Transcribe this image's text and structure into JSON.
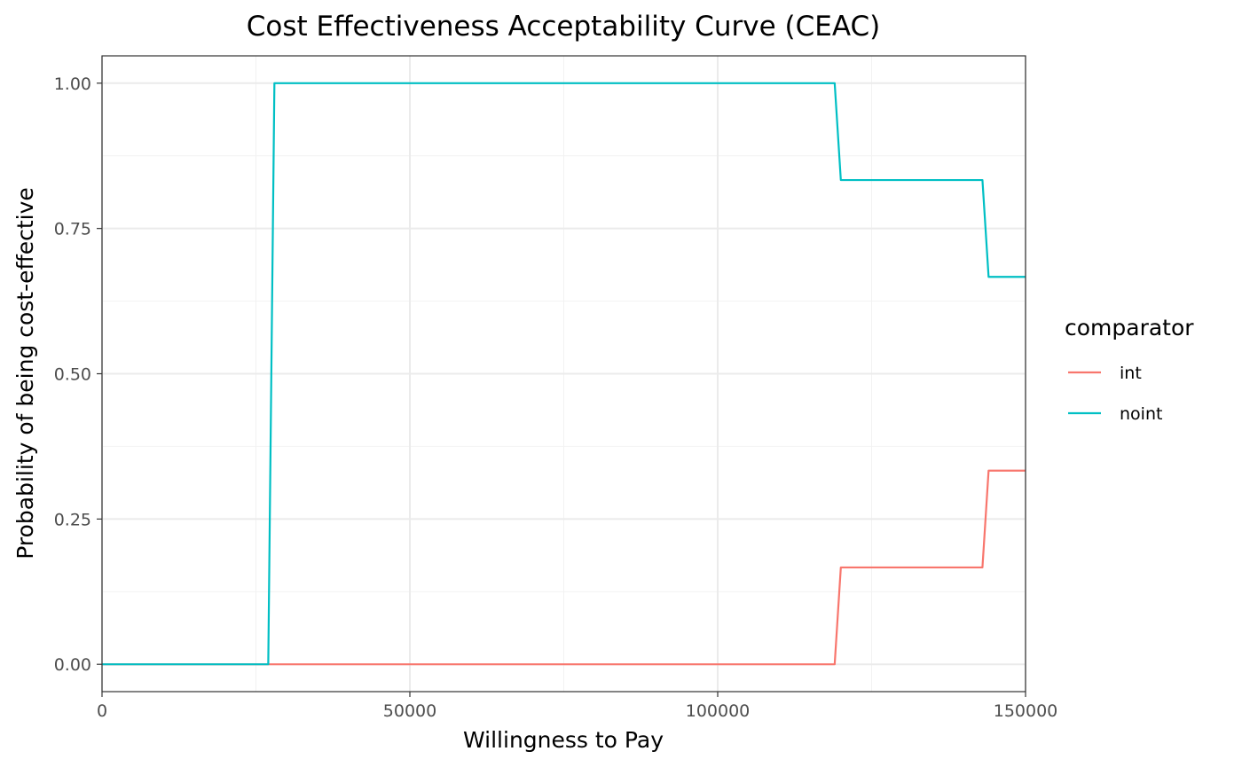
{
  "chart_data": {
    "type": "line",
    "title": "Cost Effectiveness Acceptability Curve (CEAC)",
    "xlabel": "Willingness to Pay",
    "ylabel": "Probability of being cost-effective",
    "xlim": [
      0,
      150000
    ],
    "ylim": [
      -0.047,
      1.047
    ],
    "x_ticks": [
      0,
      50000,
      100000,
      150000
    ],
    "x_tick_labels": [
      "0",
      "50000",
      "100000",
      "150000"
    ],
    "y_ticks": [
      0,
      0.25,
      0.5,
      0.75,
      1.0
    ],
    "y_tick_labels": [
      "0.00",
      "0.25",
      "0.50",
      "0.75",
      "1.00"
    ],
    "x_minor_ticks": [
      25000,
      75000,
      125000
    ],
    "y_minor_ticks": [
      0.125,
      0.375,
      0.625,
      0.875
    ],
    "grid": true,
    "legend": {
      "title": "comparator",
      "position": "right"
    },
    "series": [
      {
        "name": "int",
        "color": "#F8766D",
        "points": [
          [
            0,
            0
          ],
          [
            119000,
            0
          ],
          [
            120000,
            0.1667
          ],
          [
            143000,
            0.1667
          ],
          [
            144000,
            0.3333
          ],
          [
            150000,
            0.3333
          ]
        ]
      },
      {
        "name": "noint",
        "color": "#00BFC4",
        "points": [
          [
            0,
            0
          ],
          [
            27000,
            0
          ],
          [
            28000,
            1.0
          ],
          [
            119000,
            1.0
          ],
          [
            120000,
            0.8333
          ],
          [
            143000,
            0.8333
          ],
          [
            144000,
            0.6667
          ],
          [
            150000,
            0.6667
          ]
        ]
      }
    ]
  }
}
